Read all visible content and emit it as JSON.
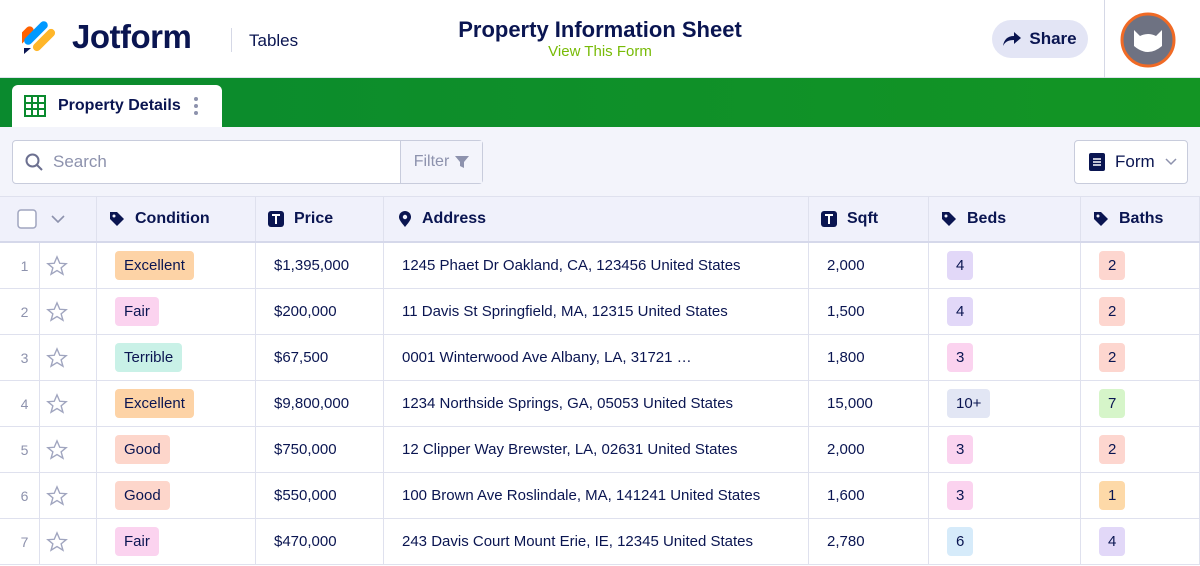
{
  "header": {
    "brand": "Jotform",
    "section": "Tables",
    "title": "Property Information Sheet",
    "subtitle": "View This Form",
    "share": "Share"
  },
  "tab": {
    "label": "Property Details"
  },
  "toolbar": {
    "search_placeholder": "Search",
    "filter": "Filter",
    "form": "Form"
  },
  "table": {
    "columns": [
      "Condition",
      "Price",
      "Address",
      "Sqft",
      "Beds",
      "Baths"
    ],
    "rows": [
      [
        "1",
        "Excellent",
        "$1,395,000",
        "1245 Phaet Dr  Oakland, CA, 123456  United States",
        "2,000",
        "4",
        "2"
      ],
      [
        "2",
        "Fair",
        "$200,000",
        "11 Davis  St Springfield, MA, 12315  United States",
        "1,500",
        "4",
        "2"
      ],
      [
        "3",
        "Terrible",
        "$67,500",
        "0001 Winterwood  Ave Albany, LA, 31721  …",
        "1,800",
        "3",
        "2"
      ],
      [
        "4",
        "Excellent",
        "$9,800,000",
        "1234 Northside  Springs, GA, 05053  United States",
        "15,000",
        "10+",
        "7"
      ],
      [
        "5",
        "Good",
        "$750,000",
        "12 Clipper  Way Brewster, LA, 02631  United States",
        "2,000",
        "3",
        "2"
      ],
      [
        "6",
        "Good",
        "$550,000",
        "100 Brown  Ave Roslindale, MA, 141241  United States",
        "1,600",
        "3",
        "1"
      ],
      [
        "7",
        "Fair",
        "$470,000",
        "243 Davis Court  Mount Erie, IE, 12345  United States",
        "2,780",
        "6",
        "4"
      ]
    ]
  }
}
